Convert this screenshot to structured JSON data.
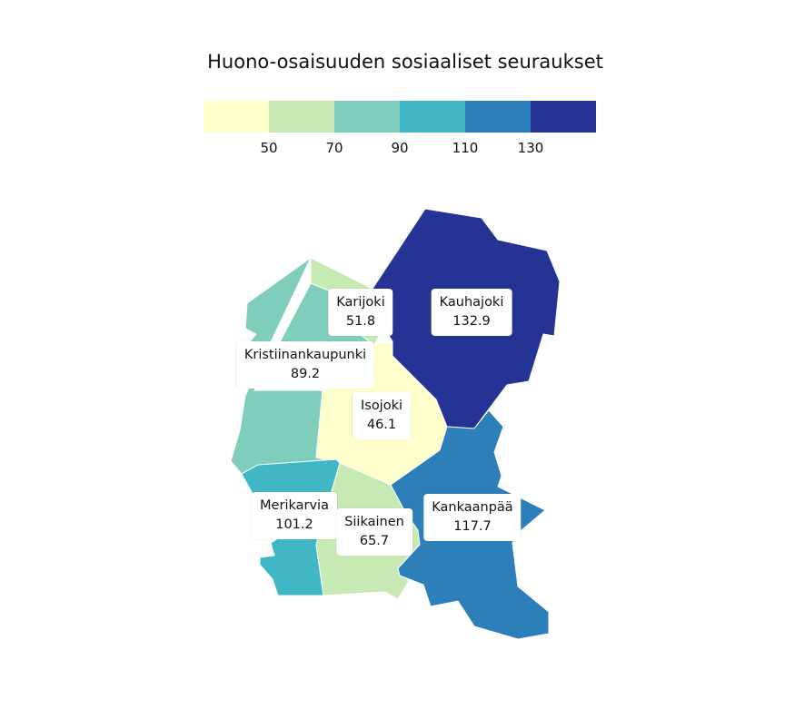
{
  "title": "Huono-osaisuuden sosiaaliset seuraukset",
  "legend": {
    "colors": [
      "#ffffcc",
      "#c7e9b4",
      "#7fcdbb",
      "#41b6c4",
      "#2c7fb8",
      "#253494"
    ],
    "breaks": [
      "50",
      "70",
      "90",
      "110",
      "130"
    ]
  },
  "regions": [
    {
      "id": "kauhajoki",
      "name": "Kauhajoki",
      "value": "132.9",
      "color": "#253494"
    },
    {
      "id": "karijoki",
      "name": "Karijoki",
      "value": "51.8",
      "color": "#c7e9b4"
    },
    {
      "id": "kristiinankaupunki",
      "name": "Kristiinankaupunki",
      "value": "89.2",
      "color": "#7fcdbb"
    },
    {
      "id": "isojoki",
      "name": "Isojoki",
      "value": "46.1",
      "color": "#ffffcc"
    },
    {
      "id": "merikarvia",
      "name": "Merikarvia",
      "value": "101.2",
      "color": "#41b6c4"
    },
    {
      "id": "siikainen",
      "name": "Siikainen",
      "value": "65.7",
      "color": "#c7e9b4"
    },
    {
      "id": "kankaanpaa",
      "name": "Kankaanpää",
      "value": "117.7",
      "color": "#2c7fb8"
    }
  ]
}
